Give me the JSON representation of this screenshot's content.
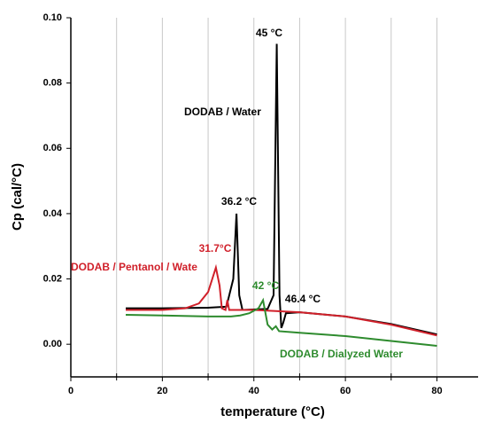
{
  "chart_data": {
    "type": "line",
    "xlabel": "temperature (°C)",
    "ylabel": "Cp (cal/°C)",
    "xlim": [
      0,
      89
    ],
    "ylim": [
      -0.01,
      0.1
    ],
    "xticks": [
      0,
      20,
      40,
      60,
      80
    ],
    "minor_xticks": [
      10,
      30,
      50,
      70
    ],
    "yticks": [
      {
        "value": 0,
        "label": "0.00"
      },
      0.02,
      0.04,
      0.06,
      0.08,
      {
        "value": 0.1,
        "label": "0.10"
      }
    ],
    "grid": true,
    "series": [
      {
        "name": "DODAB / Water",
        "color": "#000000",
        "x": [
          12,
          20,
          30,
          34,
          35.5,
          36.2,
          36.8,
          37.5,
          43,
          44.3,
          45,
          45.6,
          46,
          46.4,
          47,
          50,
          60,
          70,
          80
        ],
        "values": [
          0.011,
          0.011,
          0.0112,
          0.0115,
          0.02,
          0.04,
          0.015,
          0.0105,
          0.0108,
          0.015,
          0.092,
          0.015,
          0.005,
          0.0065,
          0.0095,
          0.0098,
          0.0085,
          0.0062,
          0.003
        ]
      },
      {
        "name": "DODAB / Pentanol / Wate",
        "color": "#d0202a",
        "x": [
          12,
          20,
          25,
          28,
          30,
          31.7,
          32.5,
          33,
          33.8,
          34.2,
          34.6,
          40,
          50,
          60,
          70,
          80
        ],
        "values": [
          0.0105,
          0.0105,
          0.011,
          0.0125,
          0.016,
          0.0235,
          0.018,
          0.011,
          0.0105,
          0.0135,
          0.0105,
          0.0105,
          0.0098,
          0.0085,
          0.006,
          0.0027
        ]
      },
      {
        "name": "DODAB / Dialyzed Water",
        "color": "#2e8b2e",
        "x": [
          12,
          20,
          30,
          35,
          37,
          39,
          41,
          42,
          43,
          44,
          44.8,
          45.5,
          50,
          60,
          70,
          80
        ],
        "values": [
          0.009,
          0.0088,
          0.0085,
          0.0085,
          0.0088,
          0.0095,
          0.011,
          0.0135,
          0.006,
          0.0045,
          0.0055,
          0.004,
          0.0035,
          0.0025,
          0.001,
          -0.0005
        ]
      }
    ],
    "annotations": [
      {
        "text": "45 °C",
        "color": "#000000"
      },
      {
        "text": "36.2 °C",
        "color": "#000000"
      },
      {
        "text": "31.7°C",
        "color": "#d0202a"
      },
      {
        "text": "42 °C",
        "color": "#2e8b2e"
      },
      {
        "text": "46.4 °C",
        "color": "#000000"
      }
    ]
  }
}
